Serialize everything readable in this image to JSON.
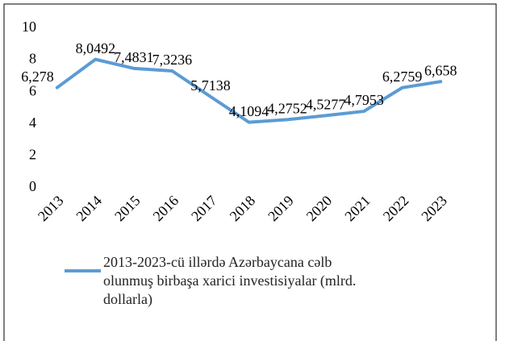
{
  "chart_data": {
    "type": "line",
    "categories": [
      "2013",
      "2014",
      "2015",
      "2016",
      "2017",
      "2018",
      "2019",
      "2020",
      "2021",
      "2022",
      "2023"
    ],
    "series": [
      {
        "name": "2013-2023-cü illərdə Azərbaycana cəlb olunmuş birbaşa xarici investisiyalar (mlrd. dollarla)",
        "color": "#5b9bd5",
        "values": [
          6.278,
          8.0492,
          7.4831,
          7.3236,
          5.7138,
          4.1094,
          4.2752,
          4.5277,
          4.7953,
          6.2759,
          6.658
        ],
        "value_labels": [
          "6,278",
          "8,0492",
          "7,4831",
          "7,3236",
          "5,7138",
          "4,1094",
          "4,2752",
          "4,5277",
          "4,7953",
          "6,2759",
          "6,658"
        ]
      }
    ],
    "ylim": [
      0,
      10
    ],
    "yticks": [
      0,
      2,
      4,
      6,
      8,
      10
    ],
    "grid": false,
    "legend": "bottom"
  }
}
